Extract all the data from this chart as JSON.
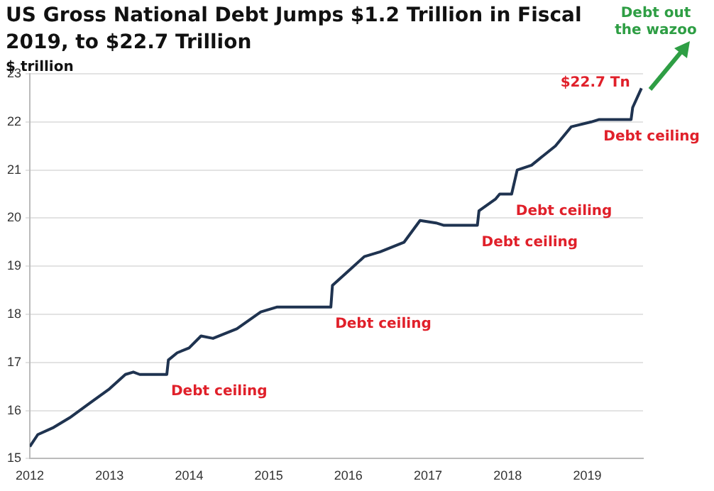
{
  "chart_data": {
    "type": "line",
    "title": "US Gross National Debt Jumps $1.2 Trillion in Fiscal 2019, to $22.7 Trillion",
    "ylabel": "$ trillion",
    "x": [
      2012.0,
      2012.1,
      2012.3,
      2012.5,
      2012.75,
      2013.0,
      2013.2,
      2013.3,
      2013.38,
      2013.72,
      2013.74,
      2013.85,
      2014.0,
      2014.15,
      2014.3,
      2014.6,
      2014.9,
      2015.1,
      2015.78,
      2015.8,
      2016.0,
      2016.2,
      2016.4,
      2016.7,
      2016.9,
      2017.1,
      2017.2,
      2017.62,
      2017.64,
      2017.85,
      2017.9,
      2018.05,
      2018.12,
      2018.3,
      2018.6,
      2018.8,
      2019.05,
      2019.15,
      2019.55,
      2019.57,
      2019.68
    ],
    "series": [
      {
        "color": "#1f3350",
        "values": [
          15.25,
          15.5,
          15.65,
          15.85,
          16.15,
          16.45,
          16.75,
          16.8,
          16.75,
          16.75,
          17.05,
          17.2,
          17.3,
          17.55,
          17.5,
          17.7,
          18.05,
          18.15,
          18.15,
          18.6,
          18.9,
          19.2,
          19.3,
          19.5,
          19.95,
          19.9,
          19.85,
          19.85,
          20.15,
          20.4,
          20.5,
          20.5,
          21.0,
          21.1,
          21.5,
          21.9,
          22.0,
          22.05,
          22.05,
          22.3,
          22.7
        ]
      }
    ],
    "xlim": [
      2012,
      2019.7
    ],
    "xticks": [
      2012,
      2013,
      2014,
      2015,
      2016,
      2017,
      2018,
      2019
    ],
    "ylim": [
      15,
      23
    ],
    "yticks": [
      15,
      16,
      17,
      18,
      19,
      20,
      21,
      22,
      23
    ],
    "grid": "y",
    "legend": false,
    "marker": "none",
    "line_style": "solid",
    "annotations": [
      {
        "text": "Debt ceiling",
        "x": 2013.72,
        "y": 16.75
      },
      {
        "text": "Debt ceiling",
        "x": 2015.78,
        "y": 18.15
      },
      {
        "text": "Debt ceiling",
        "x": 2017.62,
        "y": 19.85
      },
      {
        "text": "Debt ceiling",
        "x": 2018.05,
        "y": 20.5
      },
      {
        "text": "Debt ceiling",
        "x": 2019.15,
        "y": 22.05
      },
      {
        "text": "$22.7 Tn",
        "x": 2019.68,
        "y": 22.7
      },
      "Debt out the wazoo"
    ]
  }
}
